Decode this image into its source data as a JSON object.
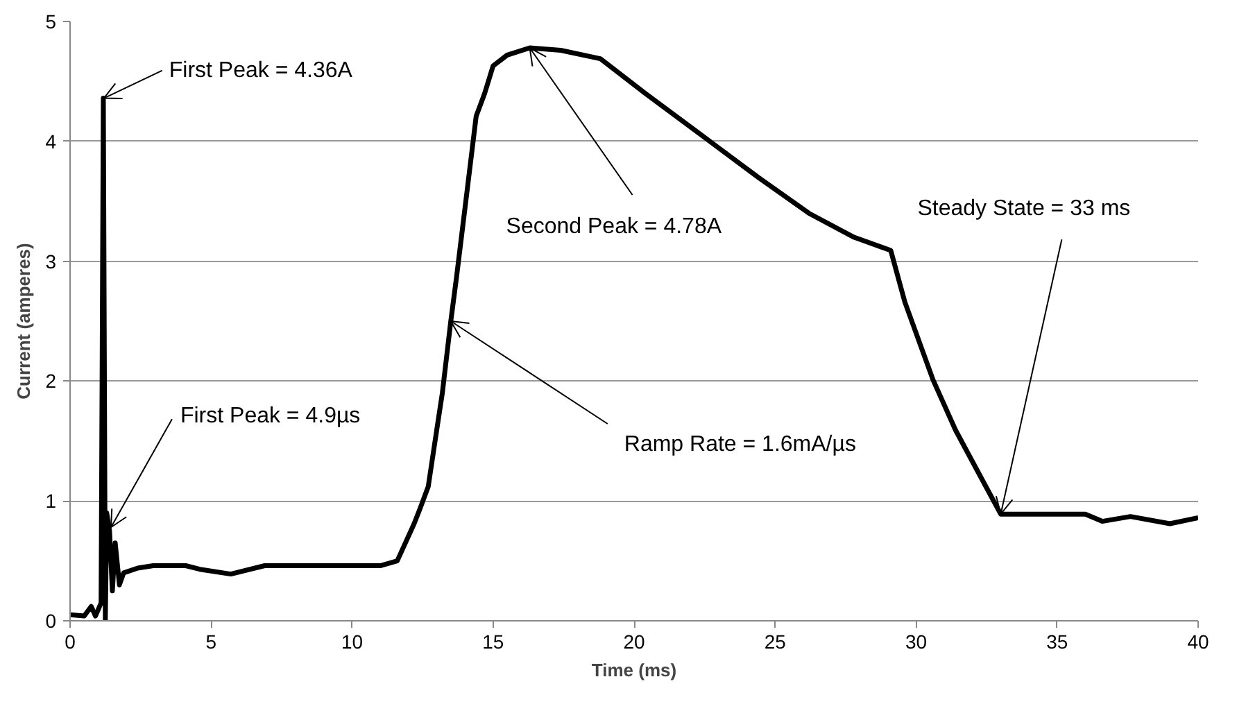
{
  "chart_data": {
    "type": "line",
    "xlabel": "Time (ms)",
    "ylabel": "Current (amperes)",
    "series": [
      {
        "color": "#000000",
        "x": [
          0,
          0.5,
          0.75,
          0.9,
          1.1,
          1.18,
          1.25,
          1.3,
          1.4,
          1.5,
          1.6,
          1.75,
          1.9,
          2.4,
          2.95,
          4.1,
          4.6,
          5.7,
          6.9,
          11.0,
          11.6,
          12.2,
          12.4,
          12.7,
          13.0,
          13.2,
          13.5,
          13.7,
          14.1,
          14.4,
          14.7,
          15.0,
          15.5,
          16.3,
          17.4,
          18.8,
          20.4,
          22.8,
          24.4,
          26.2,
          27.8,
          29.1,
          29.6,
          30.6,
          31.4,
          32.2,
          33.0,
          36.0,
          36.6,
          37.6,
          39.0,
          40
        ],
        "values": [
          0.05,
          0.04,
          0.12,
          0.04,
          0.15,
          4.36,
          0,
          0.9,
          0.75,
          0.25,
          0.65,
          0.3,
          0.4,
          0.44,
          0.46,
          0.46,
          0.43,
          0.39,
          0.46,
          0.46,
          0.5,
          0.81,
          0.93,
          1.12,
          1.59,
          1.9,
          2.5,
          2.86,
          3.63,
          4.21,
          4.4,
          4.63,
          4.72,
          4.78,
          4.76,
          4.69,
          4.4,
          3.98,
          3.7,
          3.4,
          3.2,
          3.09,
          2.66,
          2.01,
          1.59,
          1.24,
          0.89,
          0.89,
          0.83,
          0.87,
          0.81,
          0.86
        ]
      }
    ],
    "xlim": [
      0,
      40
    ],
    "ylim": [
      0,
      5
    ],
    "xticks": [
      0,
      5,
      10,
      15,
      20,
      25,
      30,
      35,
      40
    ],
    "yticks": [
      0,
      1,
      2,
      3,
      4,
      5
    ],
    "grid": "y",
    "annotations": [
      {
        "text": "First Peak = 4.36A",
        "x": 1.2,
        "y": 4.36
      },
      {
        "text": "First Peak = 4.9µs",
        "x": 1.45,
        "y": 0.78
      },
      {
        "text": "Second Peak = 4.78A",
        "x": 16.3,
        "y": 4.78
      },
      {
        "text": "Ramp Rate = 1.6mA/µs",
        "x": 13.5,
        "y": 2.5
      },
      {
        "text": "Steady State = 33  ms",
        "x": 33.0,
        "y": 0.89
      }
    ]
  }
}
